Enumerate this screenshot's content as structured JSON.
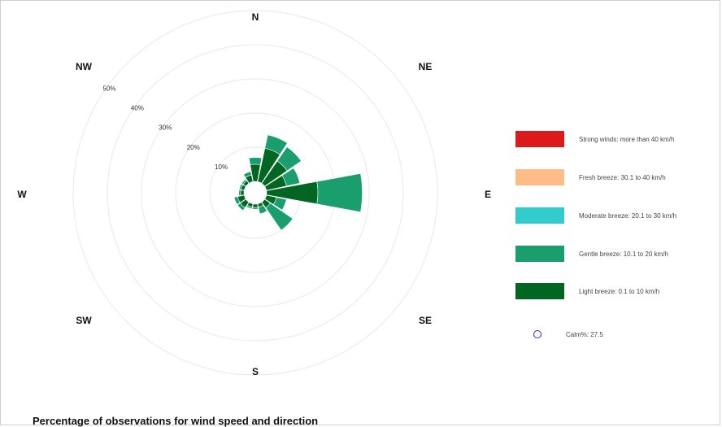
{
  "chart_data": {
    "type": "windrose",
    "directions": [
      "N",
      "NNE",
      "NE",
      "ENE",
      "E",
      "ESE",
      "SE",
      "SSE",
      "S",
      "SSW",
      "SW",
      "WSW",
      "W",
      "WNW",
      "NW",
      "NNW"
    ],
    "compass_labels": [
      "N",
      "NE",
      "E",
      "SE",
      "S",
      "SW",
      "W",
      "NW"
    ],
    "radial_ticks": [
      "10%",
      "20%",
      "30%",
      "40%",
      "50%"
    ],
    "radial_max": 50,
    "series": [
      {
        "name": "Light breeze: 0.1 to 10 km/h",
        "color": "#006622",
        "values": [
          5,
          10,
          8,
          6,
          15,
          3,
          2,
          1,
          1,
          1,
          2,
          2,
          1,
          1,
          1,
          2
        ]
      },
      {
        "name": "Gentle breeze: 10.1 to 20 km/h",
        "color": "#1a9e6e",
        "values": [
          2,
          4,
          5,
          4,
          13,
          3,
          8,
          2,
          0.5,
          0.5,
          1,
          1,
          0.5,
          0.5,
          0.5,
          1
        ]
      },
      {
        "name": "Moderate breeze: 20.1 to 30 km/h",
        "color": "#33cccc",
        "values": [
          0,
          0,
          0,
          0,
          0,
          0,
          0,
          0,
          0,
          0,
          0,
          0,
          0,
          0,
          0,
          0
        ]
      },
      {
        "name": "Fresh breeze: 30.1 to 40 km/h",
        "color": "#ffbb88",
        "values": [
          0,
          0,
          0,
          0,
          0,
          0,
          0,
          0,
          0,
          0,
          0,
          0,
          0,
          0,
          0,
          0
        ]
      },
      {
        "name": "Strong winds: more than 40 km/h",
        "color": "#dd1a1a",
        "values": [
          0,
          0,
          0,
          0,
          0,
          0,
          0,
          0,
          0,
          0,
          0,
          0,
          0,
          0,
          0,
          0
        ]
      }
    ],
    "calm": {
      "label": "Calm%: 27.5",
      "value": 27.5,
      "color": "#2a2ad0"
    },
    "title": "Percentage of observations for wind speed and direction"
  }
}
